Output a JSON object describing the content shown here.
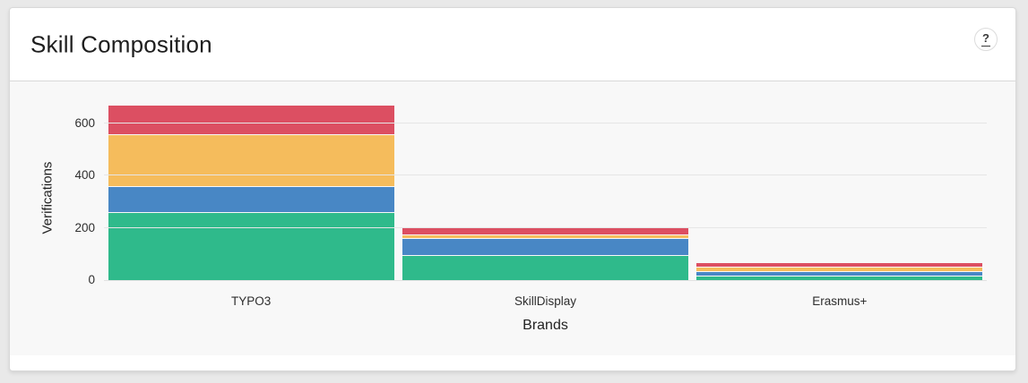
{
  "card": {
    "title": "Skill Composition",
    "help_label": "?"
  },
  "chart_data": {
    "type": "bar",
    "stacked": true,
    "title": "Skill Composition",
    "xlabel": "Brands",
    "ylabel": "Verifications",
    "categories": [
      "TYPO3",
      "SkillDisplay",
      "Erasmus+"
    ],
    "series": [
      {
        "name": "green-segment",
        "color": "#2fba8b",
        "values": [
          258,
          92,
          13
        ]
      },
      {
        "name": "blue-segment",
        "color": "#4887c5",
        "values": [
          94,
          64,
          15
        ]
      },
      {
        "name": "orange-segment",
        "color": "#f5bc5c",
        "values": [
          198,
          9,
          13
        ]
      },
      {
        "name": "red-segment",
        "color": "#dc4f62",
        "values": [
          109,
          24,
          13
        ]
      }
    ],
    "totals": [
      659,
      189,
      54
    ],
    "y_ticks": [
      0,
      200,
      400,
      600
    ],
    "ylim": [
      0,
      690
    ],
    "grid": true,
    "legend": false
  },
  "colors": {
    "page_background": "#e9e9e9",
    "card_background": "#ffffff",
    "chart_background": "#f8f8f8",
    "gridline": "#e6e6e6",
    "border": "#d9d9d9"
  }
}
